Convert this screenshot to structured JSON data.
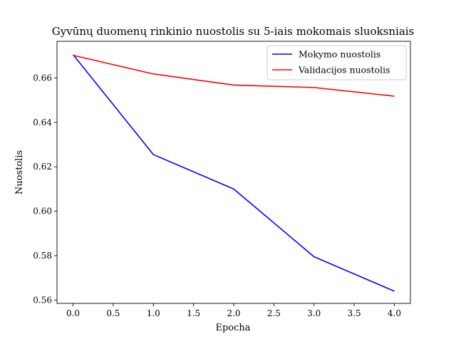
{
  "chart_data": {
    "type": "line",
    "title": "Gyvūnų duomenų rinkinio nuostolis su 5-iais mokomais sluoksniais",
    "xlabel": "Epocha",
    "ylabel": "Nuostolis",
    "xlim": [
      -0.2,
      4.2
    ],
    "ylim": [
      0.5585,
      0.6765
    ],
    "xticks": [
      0.0,
      0.5,
      1.0,
      1.5,
      2.0,
      2.5,
      3.0,
      3.5,
      4.0
    ],
    "xtick_labels": [
      "0.0",
      "0.5",
      "1.0",
      "1.5",
      "2.0",
      "2.5",
      "3.0",
      "3.5",
      "4.0"
    ],
    "yticks": [
      0.56,
      0.58,
      0.6,
      0.62,
      0.64,
      0.66
    ],
    "ytick_labels": [
      "0.56",
      "0.58",
      "0.60",
      "0.62",
      "0.64",
      "0.66"
    ],
    "grid": false,
    "legend_position": "top-right",
    "x": [
      0,
      1,
      2,
      3,
      4
    ],
    "series": [
      {
        "name": "Mokymo nuostolis",
        "color": "#0000ff",
        "values": [
          0.6705,
          0.6255,
          0.61,
          0.5795,
          0.564
        ]
      },
      {
        "name": "Validacijos nuostolis",
        "color": "#ff0000",
        "values": [
          0.6702,
          0.6618,
          0.6568,
          0.6557,
          0.6518
        ]
      }
    ]
  }
}
